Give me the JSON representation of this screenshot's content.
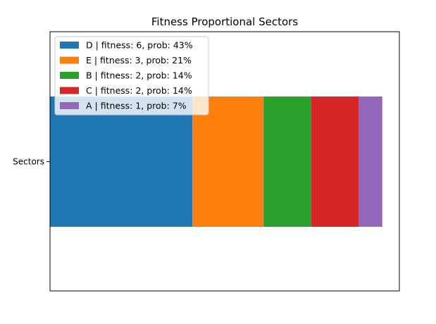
{
  "chart_data": {
    "type": "bar",
    "orientation": "horizontal-stacked",
    "title": "Fitness Proportional Sectors",
    "xlabel": "",
    "ylabel": "",
    "categories": [
      "Sectors"
    ],
    "grid": false,
    "legend_position": "upper-left",
    "xlim": [
      0,
      14.72
    ],
    "series": [
      {
        "name": "D | fitness: 6, prob: 43%",
        "values": [
          6
        ],
        "color": "#1f77b4"
      },
      {
        "name": "E | fitness: 3, prob: 21%",
        "values": [
          3
        ],
        "color": "#ff7f0e"
      },
      {
        "name": "B | fitness: 2, prob: 14%",
        "values": [
          2
        ],
        "color": "#2ca02c"
      },
      {
        "name": "C | fitness: 2, prob: 14%",
        "values": [
          2
        ],
        "color": "#d62728"
      },
      {
        "name": "A | fitness: 1, prob: 7%",
        "values": [
          1
        ],
        "color": "#9467bd"
      }
    ]
  }
}
